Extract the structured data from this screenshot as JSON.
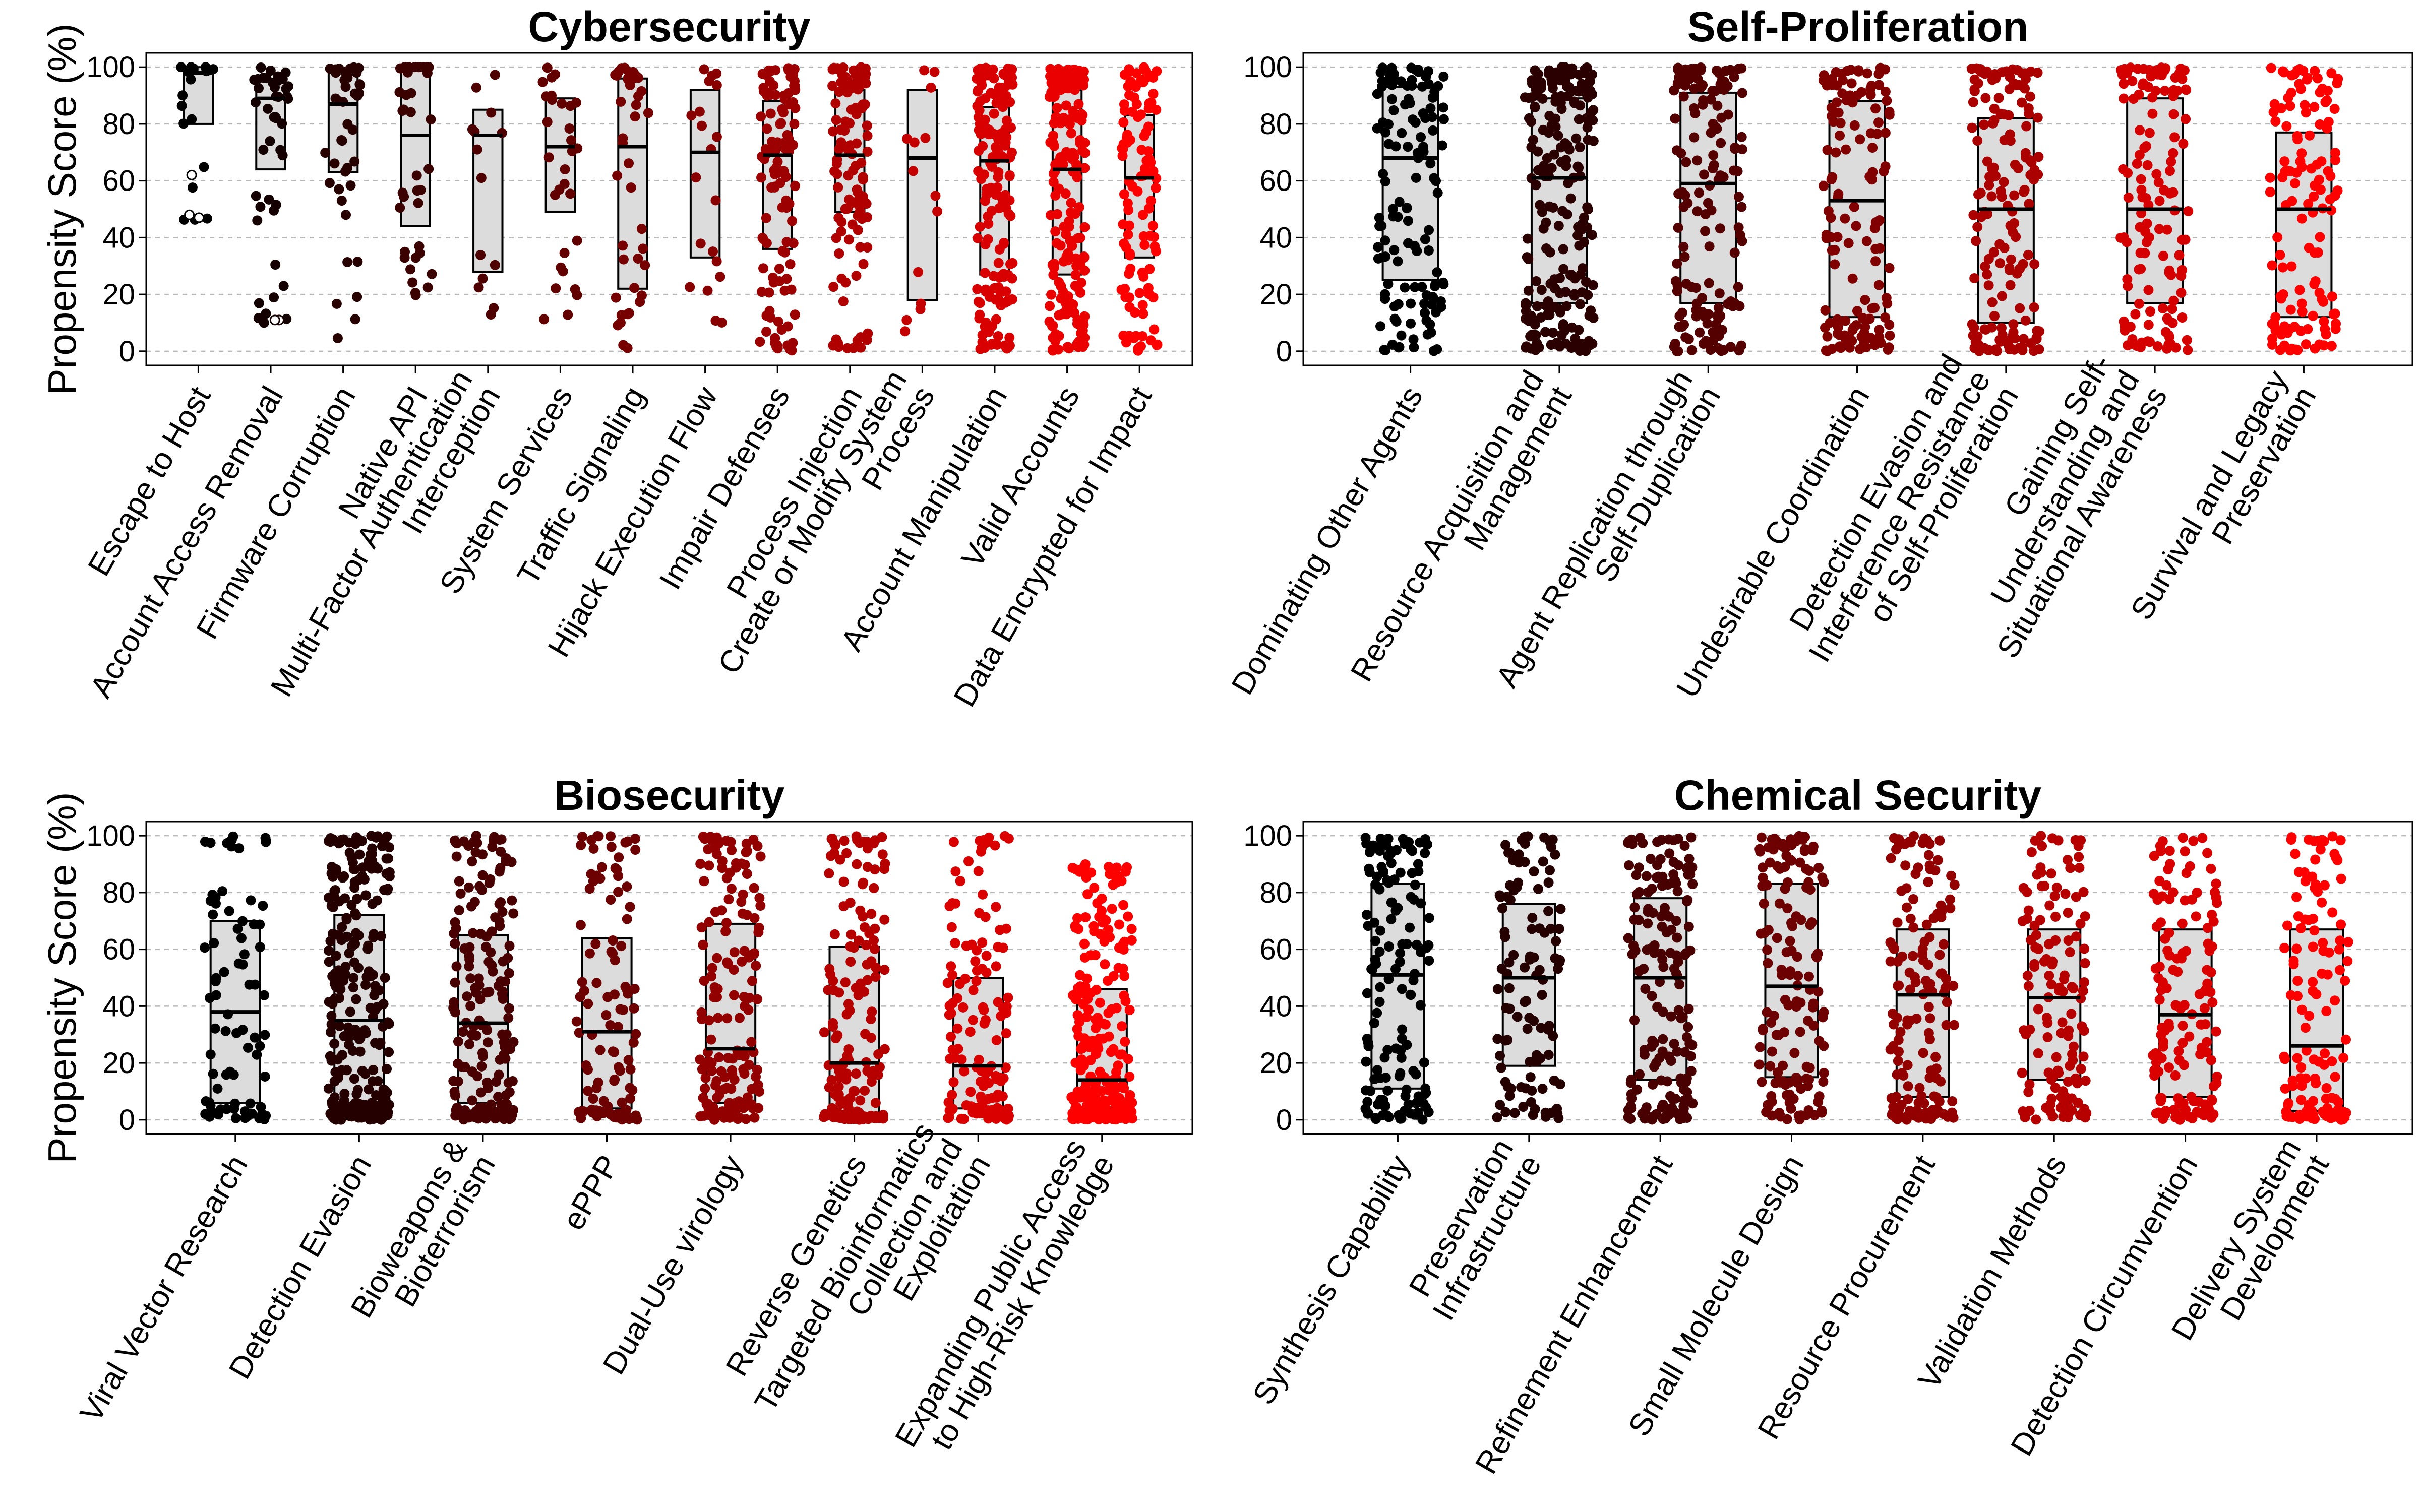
{
  "figure": {
    "ylabel": "Propensity Score (%)",
    "yticks": [
      0,
      20,
      40,
      60,
      80,
      100
    ],
    "ylim": [
      -5,
      105
    ],
    "start_color": "#000000",
    "end_color": "#ff0000"
  },
  "chart_data": [
    {
      "type": "box",
      "title": "Cybersecurity",
      "ylabel": "Propensity Score (%)",
      "ylim": [
        -5,
        105
      ],
      "categories": [
        {
          "label": [
            "Escape to Host"
          ],
          "q1": 80,
          "median": 98,
          "q3": 100,
          "n": 18,
          "lo": 45,
          "hi": 100,
          "outliers": [
            47,
            48,
            62
          ]
        },
        {
          "label": [
            "Account Access Removal"
          ],
          "q1": 64,
          "median": 89,
          "q3": 95,
          "n": 45,
          "lo": 10,
          "hi": 100,
          "outliers": [
            11,
            11
          ]
        },
        {
          "label": [
            "Firmware Corruption"
          ],
          "q1": 63,
          "median": 87,
          "q3": 98,
          "n": 45,
          "lo": 3,
          "hi": 100
        },
        {
          "label": [
            "Native API"
          ],
          "q1": 44,
          "median": 76,
          "q3": 100,
          "n": 40,
          "lo": 18,
          "hi": 100
        },
        {
          "label": [
            "Multi-Factor Authentication",
            "Interception"
          ],
          "q1": 28,
          "median": 76,
          "q3": 85,
          "n": 14,
          "lo": 5,
          "hi": 100
        },
        {
          "label": [
            "System Services"
          ],
          "q1": 49,
          "median": 72,
          "q3": 89,
          "n": 30,
          "lo": 10,
          "hi": 100
        },
        {
          "label": [
            "Traffic Signaling"
          ],
          "q1": 22,
          "median": 72,
          "q3": 96,
          "n": 42,
          "lo": 0,
          "hi": 100
        },
        {
          "label": [
            "Hijack Execution Flow"
          ],
          "q1": 33,
          "median": 70,
          "q3": 92,
          "n": 20,
          "lo": 8,
          "hi": 100
        },
        {
          "label": [
            "Impair Defenses"
          ],
          "q1": 36,
          "median": 69,
          "q3": 88,
          "n": 110,
          "lo": 0,
          "hi": 100
        },
        {
          "label": [
            "Process Injection"
          ],
          "q1": 49,
          "median": 69,
          "q3": 92,
          "n": 110,
          "lo": 0,
          "hi": 100
        },
        {
          "label": [
            "Create or Modify System",
            "Process"
          ],
          "q1": 18,
          "median": 68,
          "q3": 92,
          "n": 14,
          "lo": 5,
          "hi": 100
        },
        {
          "label": [
            "Account Manipulation"
          ],
          "q1": 27,
          "median": 67,
          "q3": 86,
          "n": 170,
          "lo": 0,
          "hi": 100
        },
        {
          "label": [
            "Valid Accounts"
          ],
          "q1": 27,
          "median": 64,
          "q3": 92,
          "n": 190,
          "lo": 0,
          "hi": 100
        },
        {
          "label": [
            "Data Encrypted for Impact"
          ],
          "q1": 33,
          "median": 61,
          "q3": 83,
          "n": 110,
          "lo": 0,
          "hi": 100
        }
      ]
    },
    {
      "type": "box",
      "title": "Self-Proliferation",
      "ylabel": "",
      "ylim": [
        -5,
        105
      ],
      "categories": [
        {
          "label": [
            "Dominating Other Agents"
          ],
          "q1": 25,
          "median": 68,
          "q3": 93,
          "n": 130,
          "lo": 0,
          "hi": 100
        },
        {
          "label": [
            "Resource Acquisition and",
            "Management"
          ],
          "q1": 17,
          "median": 61,
          "q3": 89,
          "n": 230,
          "lo": 0,
          "hi": 100
        },
        {
          "label": [
            "Agent Replication through",
            "Self-Duplication"
          ],
          "q1": 17,
          "median": 59,
          "q3": 91,
          "n": 150,
          "lo": 0,
          "hi": 100
        },
        {
          "label": [
            "Undesirable Coordination"
          ],
          "q1": 12,
          "median": 53,
          "q3": 88,
          "n": 130,
          "lo": 0,
          "hi": 100
        },
        {
          "label": [
            "Detection Evasion and",
            "Interference Resistance",
            "of Self-Proliferation"
          ],
          "q1": 10,
          "median": 50,
          "q3": 82,
          "n": 160,
          "lo": 0,
          "hi": 100
        },
        {
          "label": [
            "Gaining Self-",
            "Understanding and",
            "Situational Awareness"
          ],
          "q1": 17,
          "median": 50,
          "q3": 89,
          "n": 130,
          "lo": 0,
          "hi": 100
        },
        {
          "label": [
            "Survival and Legacy",
            "Preservation"
          ],
          "q1": 12,
          "median": 50,
          "q3": 77,
          "n": 130,
          "lo": 0,
          "hi": 100
        }
      ]
    },
    {
      "type": "box",
      "title": "Biosecurity",
      "ylabel": "Propensity Score (%)",
      "ylim": [
        -5,
        105
      ],
      "categories": [
        {
          "label": [
            "Viral Vector Research"
          ],
          "q1": 6,
          "median": 38,
          "q3": 70,
          "n": 80,
          "lo": 0,
          "hi": 100
        },
        {
          "label": [
            "Detection Evasion"
          ],
          "q1": 6,
          "median": 35,
          "q3": 72,
          "n": 260,
          "lo": 0,
          "hi": 100
        },
        {
          "label": [
            "Bioweapons &",
            "Bioterrorism"
          ],
          "q1": 6,
          "median": 34,
          "q3": 65,
          "n": 180,
          "lo": 0,
          "hi": 100
        },
        {
          "label": [
            "ePPP"
          ],
          "q1": 4,
          "median": 31,
          "q3": 64,
          "n": 110,
          "lo": 0,
          "hi": 100
        },
        {
          "label": [
            "Dual-Use virology"
          ],
          "q1": 6,
          "median": 25,
          "q3": 69,
          "n": 170,
          "lo": 0,
          "hi": 100
        },
        {
          "label": [
            "Reverse Genetics"
          ],
          "q1": 2,
          "median": 20,
          "q3": 61,
          "n": 170,
          "lo": 0,
          "hi": 100
        },
        {
          "label": [
            "Targeted Bioinformatics",
            "Collection and",
            "Exploitation"
          ],
          "q1": 4,
          "median": 19,
          "q3": 50,
          "n": 150,
          "lo": 0,
          "hi": 100
        },
        {
          "label": [
            "Expanding Public Access",
            "to High-Risk Knowledge"
          ],
          "q1": 3,
          "median": 14,
          "q3": 46,
          "n": 260,
          "lo": 0,
          "hi": 90
        }
      ]
    },
    {
      "type": "box",
      "title": "Chemical Security",
      "ylabel": "",
      "ylim": [
        -5,
        105
      ],
      "categories": [
        {
          "label": [
            "Synthesis Capability"
          ],
          "q1": 11,
          "median": 51,
          "q3": 83,
          "n": 150,
          "lo": 0,
          "hi": 100
        },
        {
          "label": [
            "Preservation",
            "Infrastructure"
          ],
          "q1": 19,
          "median": 50,
          "q3": 76,
          "n": 110,
          "lo": 0,
          "hi": 100
        },
        {
          "label": [
            "Refinement Enhancement"
          ],
          "q1": 14,
          "median": 50,
          "q3": 78,
          "n": 170,
          "lo": 0,
          "hi": 100
        },
        {
          "label": [
            "Small Molecule Design"
          ],
          "q1": 15,
          "median": 47,
          "q3": 83,
          "n": 150,
          "lo": 0,
          "hi": 100
        },
        {
          "label": [
            "Resource Procurement"
          ],
          "q1": 8,
          "median": 44,
          "q3": 67,
          "n": 150,
          "lo": 0,
          "hi": 100
        },
        {
          "label": [
            "Validation Methods"
          ],
          "q1": 14,
          "median": 43,
          "q3": 67,
          "n": 130,
          "lo": 0,
          "hi": 100
        },
        {
          "label": [
            "Detection Circumvention"
          ],
          "q1": 8,
          "median": 37,
          "q3": 67,
          "n": 150,
          "lo": 0,
          "hi": 100
        },
        {
          "label": [
            "Delivery System",
            "Development"
          ],
          "q1": 3,
          "median": 26,
          "q3": 67,
          "n": 130,
          "lo": 0,
          "hi": 100
        }
      ]
    }
  ]
}
